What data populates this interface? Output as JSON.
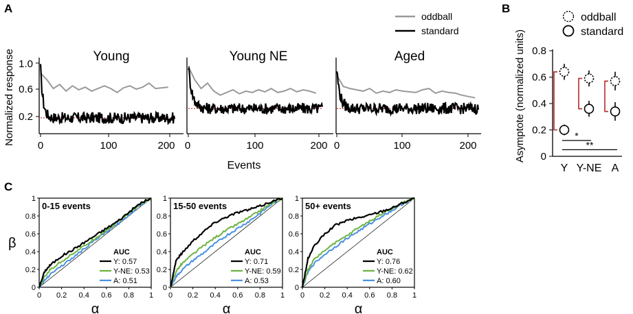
{
  "panels": {
    "A": {
      "label": "A",
      "ylabel": "Normalized response",
      "xlabel": "Events",
      "legend": [
        {
          "name": "oddball",
          "color": "#999999"
        },
        {
          "name": "standard",
          "color": "#000000"
        }
      ],
      "y_ticks": [
        "1.0",
        "0.6",
        "0.2"
      ],
      "x_ticks": [
        "0",
        "100",
        "200"
      ],
      "asymptote_color": "#cc2222"
    },
    "B": {
      "label": "B",
      "ylabel": "Asymptote (normalized units)",
      "legend": [
        {
          "name": "oddball",
          "marker": "dashed-circle"
        },
        {
          "name": "standard",
          "marker": "solid-circle"
        }
      ],
      "y_ticks": [
        "0",
        "0.2",
        "0.4",
        "0.6",
        "0.8"
      ],
      "sig_labels": [
        "*",
        "**"
      ],
      "bracket_color": "#b52a2a"
    },
    "C": {
      "label": "C",
      "ylabel": "β",
      "xlabel": "α",
      "tick_labels": [
        "0",
        "0.2",
        "0.4",
        "0.6",
        "0.8",
        "1"
      ],
      "auc_header": "AUC",
      "colors": {
        "Y": "#000000",
        "Y-NE": "#6db33f",
        "A": "#4a90e2"
      }
    }
  },
  "chart_data": [
    {
      "type": "line",
      "panel": "A",
      "subplots": [
        {
          "title": "Young",
          "xlim": [
            0,
            215
          ],
          "ylim": [
            0.0,
            1.05
          ],
          "asymptote": 0.18,
          "oddball": {
            "x": [
              0,
              10,
              20,
              30,
              40,
              50,
              60,
              70,
              80,
              90,
              100,
              110,
              120,
              130,
              140,
              150,
              160,
              170,
              180,
              190,
              200
            ],
            "y": [
              0.85,
              0.75,
              0.62,
              0.68,
              0.58,
              0.66,
              0.6,
              0.64,
              0.58,
              0.62,
              0.66,
              0.62,
              0.56,
              0.63,
              0.66,
              0.61,
              0.64,
              0.7,
              0.62,
              0.63,
              0.64
            ]
          },
          "standard": {
            "x_range": [
              0,
              210
            ],
            "start": 0.92,
            "asymptote": 0.18,
            "tau": 4
          }
        },
        {
          "title": "Young NE",
          "xlim": [
            0,
            215
          ],
          "ylim": [
            0.0,
            1.05
          ],
          "asymptote": 0.32,
          "oddball": {
            "x": [
              0,
              10,
              20,
              30,
              40,
              50,
              60,
              70,
              80,
              90,
              100,
              110,
              120,
              130,
              140,
              150,
              160,
              170,
              180,
              190,
              200
            ],
            "y": [
              0.95,
              0.75,
              0.62,
              0.7,
              0.58,
              0.52,
              0.56,
              0.6,
              0.54,
              0.58,
              0.56,
              0.6,
              0.57,
              0.62,
              0.56,
              0.58,
              0.62,
              0.57,
              0.6,
              0.58,
              0.55
            ]
          },
          "standard": {
            "x_range": [
              0,
              210
            ],
            "start": 0.96,
            "asymptote": 0.32,
            "tau": 6
          }
        },
        {
          "title": "Aged",
          "xlim": [
            0,
            215
          ],
          "ylim": [
            0.0,
            1.05
          ],
          "asymptote": 0.32,
          "oddball": {
            "x": [
              0,
              10,
              20,
              30,
              40,
              50,
              60,
              70,
              80,
              90,
              100,
              110,
              120,
              130,
              140,
              150,
              160,
              170,
              180,
              190,
              200,
              210
            ],
            "y": [
              0.82,
              0.65,
              0.62,
              0.6,
              0.58,
              0.62,
              0.55,
              0.58,
              0.56,
              0.6,
              0.58,
              0.57,
              0.56,
              0.6,
              0.62,
              0.55,
              0.58,
              0.56,
              0.55,
              0.52,
              0.5,
              0.48
            ]
          },
          "standard": {
            "x_range": [
              0,
              215
            ],
            "start": 0.9,
            "asymptote": 0.32,
            "tau": 5
          }
        }
      ]
    },
    {
      "type": "scatter",
      "panel": "B",
      "categories": [
        "Y",
        "Y-NE",
        "A"
      ],
      "ylim": [
        0,
        0.85
      ],
      "series": [
        {
          "name": "oddball",
          "values": [
            0.64,
            0.59,
            0.57
          ],
          "err": [
            0.05,
            0.05,
            0.06
          ]
        },
        {
          "name": "standard",
          "values": [
            0.2,
            0.36,
            0.34
          ],
          "err": [
            0.03,
            0.05,
            0.06
          ]
        }
      ],
      "significance": [
        {
          "from": "Y",
          "to": "Y-NE",
          "label": "*",
          "level": 0.12
        },
        {
          "from": "Y",
          "to": "A",
          "label": "**",
          "level": 0.05
        }
      ]
    },
    {
      "type": "line",
      "panel": "C",
      "xlim": [
        0,
        1
      ],
      "ylim": [
        0,
        1
      ],
      "subplots": [
        {
          "title": "0-15 events",
          "series": [
            {
              "name": "Y",
              "auc_label": "Y: 0.57",
              "x": [
                0,
                0.05,
                0.1,
                0.2,
                0.3,
                0.4,
                0.5,
                0.6,
                0.7,
                0.8,
                0.9,
                1
              ],
              "y": [
                0,
                0.18,
                0.25,
                0.35,
                0.42,
                0.5,
                0.58,
                0.66,
                0.74,
                0.84,
                0.94,
                1
              ]
            },
            {
              "name": "Y-NE",
              "auc_label": "Y-NE: 0.53",
              "x": [
                0,
                0.05,
                0.1,
                0.2,
                0.3,
                0.4,
                0.5,
                0.6,
                0.7,
                0.8,
                0.9,
                1
              ],
              "y": [
                0,
                0.12,
                0.2,
                0.29,
                0.38,
                0.46,
                0.55,
                0.64,
                0.73,
                0.83,
                0.93,
                1
              ]
            },
            {
              "name": "A",
              "auc_label": "A: 0.51",
              "x": [
                0,
                0.05,
                0.1,
                0.2,
                0.3,
                0.4,
                0.5,
                0.6,
                0.7,
                0.8,
                0.9,
                1
              ],
              "y": [
                0,
                0.08,
                0.15,
                0.24,
                0.33,
                0.43,
                0.53,
                0.62,
                0.71,
                0.81,
                0.92,
                1
              ]
            }
          ]
        },
        {
          "title": "15-50 events",
          "series": [
            {
              "name": "Y",
              "auc_label": "Y: 0.71",
              "x": [
                0,
                0.05,
                0.1,
                0.2,
                0.3,
                0.4,
                0.5,
                0.6,
                0.7,
                0.8,
                0.9,
                1
              ],
              "y": [
                0,
                0.3,
                0.38,
                0.52,
                0.63,
                0.73,
                0.79,
                0.84,
                0.87,
                0.91,
                0.96,
                1
              ]
            },
            {
              "name": "Y-NE",
              "auc_label": "Y-NE: 0.59",
              "x": [
                0,
                0.05,
                0.1,
                0.2,
                0.3,
                0.4,
                0.5,
                0.6,
                0.7,
                0.8,
                0.9,
                1
              ],
              "y": [
                0,
                0.18,
                0.26,
                0.37,
                0.47,
                0.56,
                0.64,
                0.71,
                0.78,
                0.86,
                0.94,
                1
              ]
            },
            {
              "name": "A",
              "auc_label": "A: 0.53",
              "x": [
                0,
                0.05,
                0.1,
                0.2,
                0.3,
                0.4,
                0.5,
                0.6,
                0.7,
                0.8,
                0.9,
                1
              ],
              "y": [
                0,
                0.12,
                0.19,
                0.3,
                0.39,
                0.49,
                0.58,
                0.66,
                0.74,
                0.83,
                0.93,
                1
              ]
            }
          ]
        },
        {
          "title": "50+ events",
          "series": [
            {
              "name": "Y",
              "auc_label": "Y: 0.76",
              "x": [
                0,
                0.05,
                0.1,
                0.2,
                0.3,
                0.4,
                0.5,
                0.6,
                0.7,
                0.8,
                0.9,
                1
              ],
              "y": [
                0,
                0.32,
                0.45,
                0.6,
                0.7,
                0.75,
                0.78,
                0.81,
                0.85,
                0.89,
                0.95,
                1
              ]
            },
            {
              "name": "Y-NE",
              "auc_label": "Y-NE: 0.62",
              "x": [
                0,
                0.05,
                0.1,
                0.2,
                0.3,
                0.4,
                0.5,
                0.6,
                0.7,
                0.8,
                0.9,
                1
              ],
              "y": [
                0,
                0.2,
                0.3,
                0.42,
                0.5,
                0.58,
                0.67,
                0.74,
                0.82,
                0.88,
                0.95,
                1
              ]
            },
            {
              "name": "A",
              "auc_label": "A: 0.60",
              "x": [
                0,
                0.05,
                0.1,
                0.2,
                0.3,
                0.4,
                0.5,
                0.6,
                0.7,
                0.8,
                0.9,
                1
              ],
              "y": [
                0,
                0.17,
                0.26,
                0.37,
                0.46,
                0.55,
                0.63,
                0.71,
                0.79,
                0.86,
                0.94,
                1
              ]
            }
          ]
        }
      ]
    }
  ]
}
